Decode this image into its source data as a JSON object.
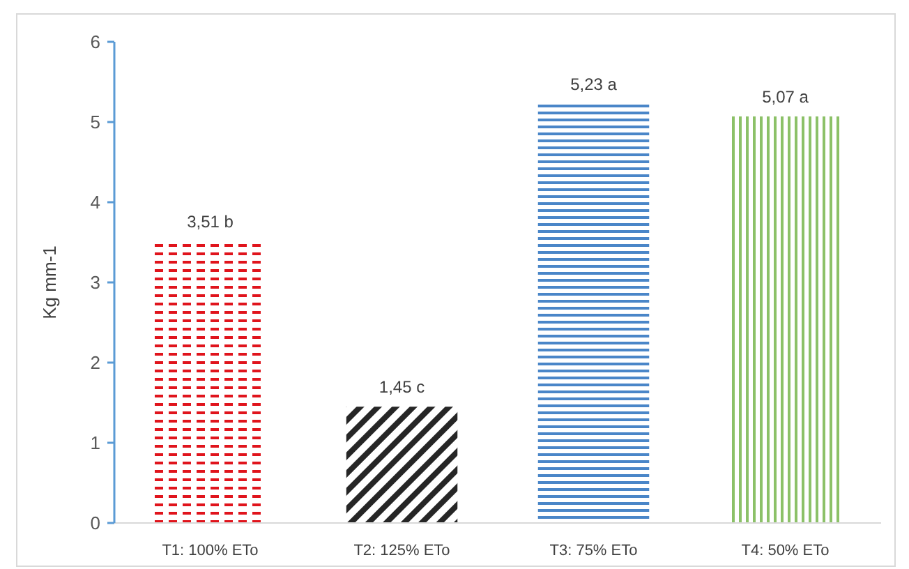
{
  "chart_data": {
    "type": "bar",
    "ylabel": "Kg mm-1",
    "categories": [
      "T1: 100% ETo",
      "T2: 125% ETo",
      "T3: 75% ETo",
      "T4: 50% ETo"
    ],
    "values": [
      3.51,
      1.45,
      5.23,
      5.07
    ],
    "colors": [
      "#e0141c",
      "#262626",
      "#4a86c8",
      "#8cc168"
    ],
    "value_labels": [
      "3,51 b",
      "1,45 c",
      "5,23 a",
      "5,07 a"
    ],
    "ylim": [
      0,
      6
    ],
    "yticks": [
      0,
      1,
      2,
      3,
      4,
      5,
      6
    ],
    "grid": false
  }
}
